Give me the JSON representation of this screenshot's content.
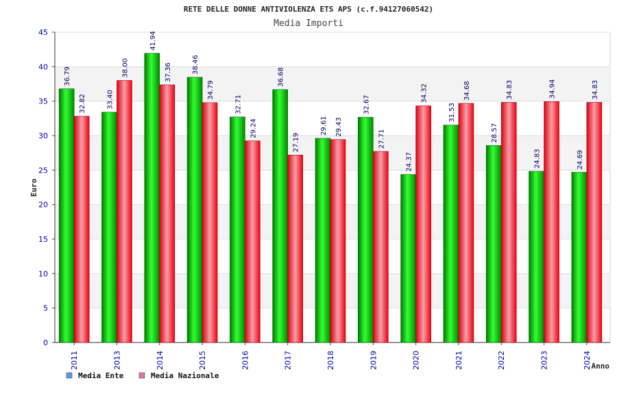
{
  "chart_data": {
    "type": "bar",
    "title": "RETE DELLE DONNE ANTIVIOLENZA ETS APS (c.f.94127060542)",
    "subtitle": "Media Importi",
    "xlabel": "Anno",
    "ylabel": "Euro",
    "ylim": [
      0,
      45
    ],
    "yticks": [
      0,
      5,
      10,
      15,
      20,
      25,
      30,
      35,
      40,
      45
    ],
    "grid": true,
    "legend_position": "bottom-left",
    "categories": [
      "2011",
      "2013",
      "2014",
      "2015",
      "2016",
      "2017",
      "2018",
      "2019",
      "2020",
      "2021",
      "2022",
      "2023",
      "2024"
    ],
    "series": [
      {
        "name": "Media Ente",
        "color": "#00cc00",
        "legend_color": "#5599ee",
        "values": [
          36.79,
          33.4,
          41.94,
          38.46,
          32.71,
          36.68,
          29.61,
          32.67,
          24.37,
          31.53,
          28.57,
          24.83,
          24.69
        ],
        "labels": [
          "36.79",
          "33.40",
          "41.94",
          "38.46",
          "32.71",
          "36.68",
          "29.61",
          "32.67",
          "24.37",
          "31.53",
          "28.57",
          "24.83",
          "24.69"
        ]
      },
      {
        "name": "Media Nazionale",
        "color": "#ee1122",
        "legend_color": "#dd77aa",
        "values": [
          32.82,
          38.0,
          37.36,
          34.79,
          29.24,
          27.19,
          29.43,
          27.71,
          34.32,
          34.68,
          34.83,
          34.94,
          34.83
        ],
        "labels": [
          "32.82",
          "38.00",
          "37.36",
          "34.79",
          "29.24",
          "27.19",
          "29.43",
          "27.71",
          "34.32",
          "34.68",
          "34.83",
          "34.94",
          "34.83"
        ]
      }
    ]
  }
}
